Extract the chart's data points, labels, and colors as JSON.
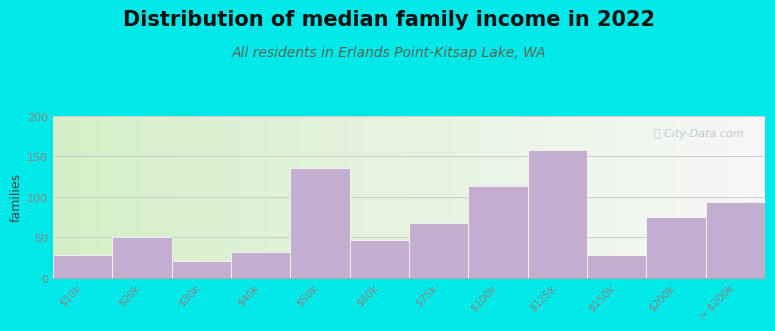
{
  "title": "Distribution of median family income in 2022",
  "subtitle": "All residents in Erlands Point-Kitsap Lake, WA",
  "ylabel": "families",
  "categories": [
    "$10k",
    "$20k",
    "$30k",
    "$40k",
    "$50k",
    "$60k",
    "$75k",
    "$100k",
    "$125k",
    "$150k",
    "$200k",
    "> $200k"
  ],
  "values": [
    28,
    50,
    20,
    32,
    135,
    46,
    68,
    113,
    158,
    28,
    75,
    93
  ],
  "bar_color": "#c4aed0",
  "bar_edgecolor": "#ffffff",
  "bg_outer": "#00e8e8",
  "ylim": [
    0,
    200
  ],
  "yticks": [
    0,
    50,
    100,
    150,
    200
  ],
  "title_fontsize": 15,
  "subtitle_fontsize": 10,
  "ylabel_fontsize": 9,
  "watermark": "ⓘ City-Data.com",
  "grid_color": "#cccccc",
  "tick_label_color": "#888888",
  "title_color": "#111111",
  "subtitle_color": "#556655"
}
